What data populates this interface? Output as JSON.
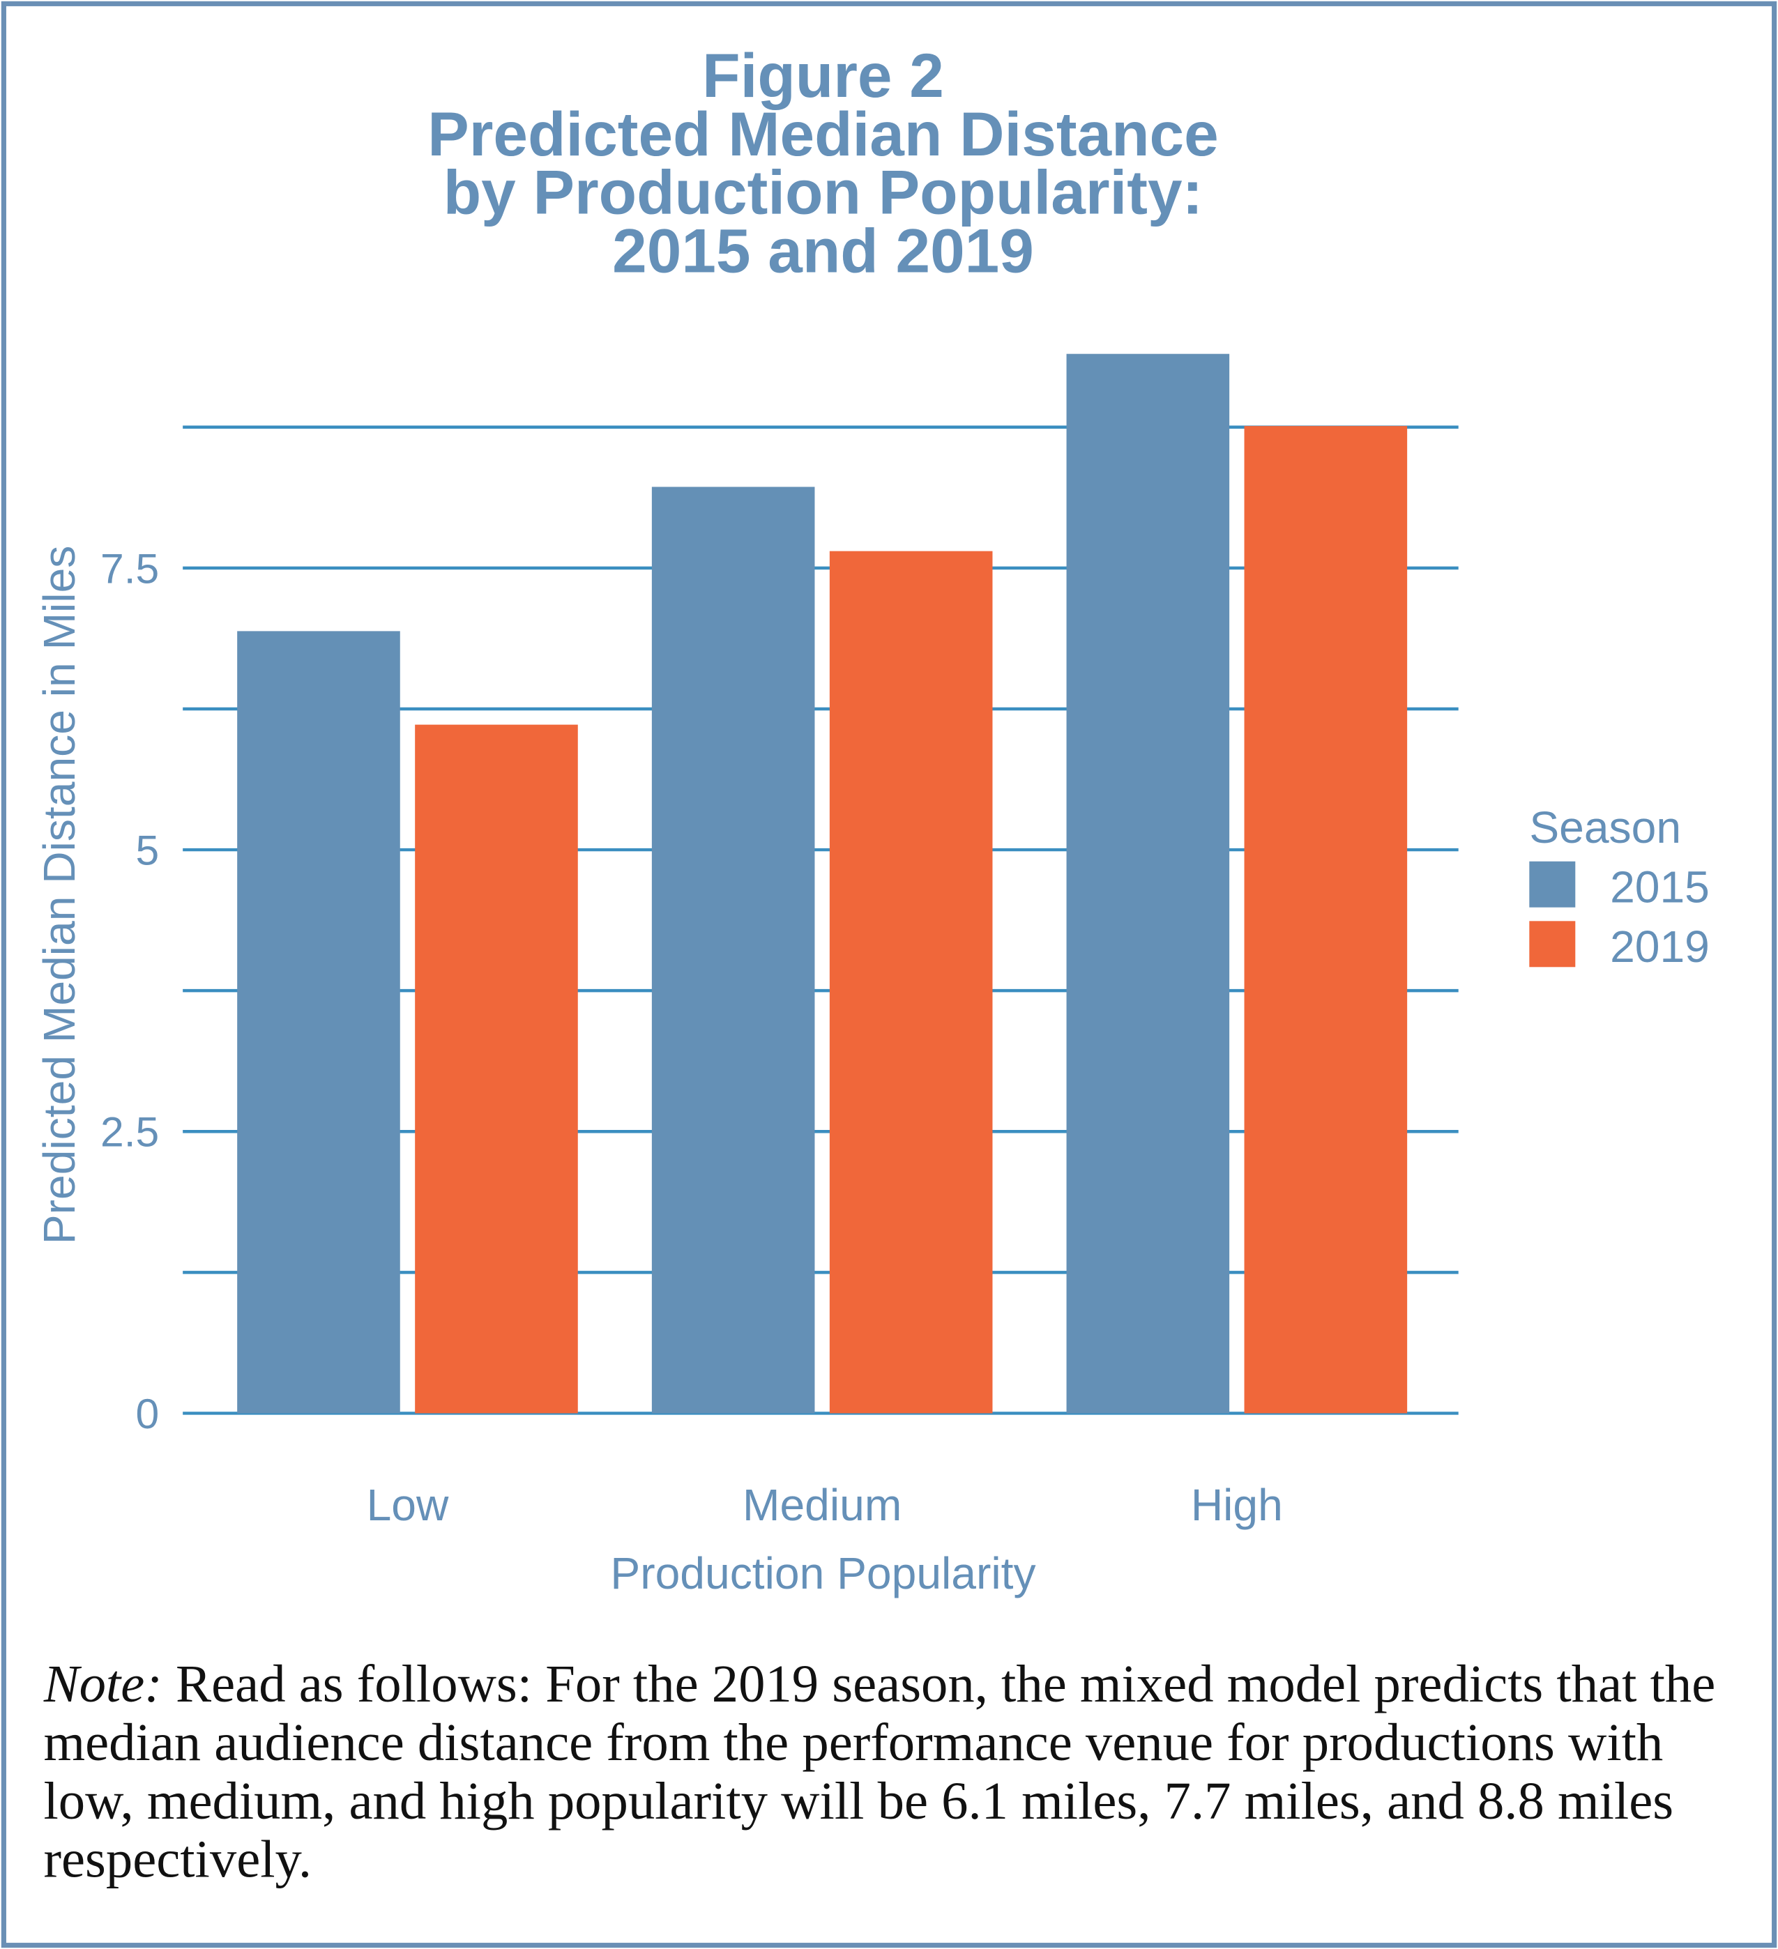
{
  "chart_data": {
    "type": "bar",
    "title": [
      "Figure 2",
      "Predicted Median Distance",
      "by Production Popularity:",
      "2015 and 2019"
    ],
    "x_label": "Production Popularity",
    "y_label": "Predicted Median Distance in Miles",
    "categories": [
      "Low",
      "Medium",
      "High"
    ],
    "series": [
      {
        "name": "2015",
        "color": "#6490b6",
        "values": [
          6.94,
          8.22,
          9.4
        ]
      },
      {
        "name": "2019",
        "color": "#f0673a",
        "values": [
          6.11,
          7.65,
          8.76
        ]
      }
    ],
    "ylim": [
      0,
      9.9
    ],
    "yticks": [
      0,
      2.5,
      5,
      7.5
    ],
    "minor_yticks": [
      1.25,
      3.75,
      6.25,
      8.75
    ],
    "grid": true,
    "grid_color": "#3a8ec0",
    "legend_title": "Season",
    "legend_position": "right",
    "note": {
      "label": "Note:",
      "text": "Read as follows: For the 2019 season, the mixed model predicts that the median audience distance from the performance venue for productions with low, medium, and high popularity will be 6.1 miles, 7.7 miles, and 8.8 miles respectively."
    }
  }
}
